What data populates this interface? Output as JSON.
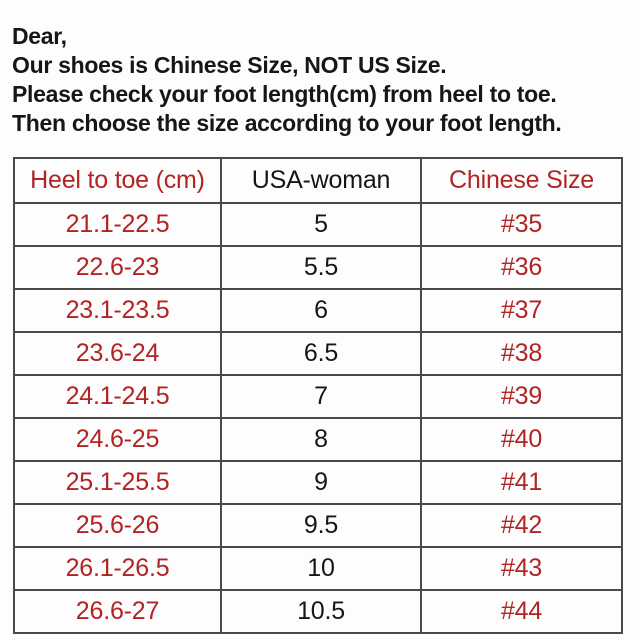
{
  "intro": {
    "line1": "Dear,",
    "line2": "Our shoes is Chinese Size, NOT US Size.",
    "line3": "Please check your foot length(cm) from heel to toe.",
    "line4": "Then choose the size according to your foot length."
  },
  "size_table": {
    "columns": [
      {
        "label": "Heel to toe (cm)"
      },
      {
        "label": "USA-woman"
      },
      {
        "label": "Chinese Size"
      }
    ],
    "rows": [
      {
        "heel_to_toe_cm": "21.1-22.5",
        "usa_woman": "5",
        "chinese_size": "#35"
      },
      {
        "heel_to_toe_cm": "22.6-23",
        "usa_woman": "5.5",
        "chinese_size": "#36"
      },
      {
        "heel_to_toe_cm": "23.1-23.5",
        "usa_woman": "6",
        "chinese_size": "#37"
      },
      {
        "heel_to_toe_cm": "23.6-24",
        "usa_woman": "6.5",
        "chinese_size": "#38"
      },
      {
        "heel_to_toe_cm": "24.1-24.5",
        "usa_woman": "7",
        "chinese_size": "#39"
      },
      {
        "heel_to_toe_cm": "24.6-25",
        "usa_woman": "8",
        "chinese_size": "#40"
      },
      {
        "heel_to_toe_cm": "25.1-25.5",
        "usa_woman": "9",
        "chinese_size": "#41"
      },
      {
        "heel_to_toe_cm": "25.6-26",
        "usa_woman": "9.5",
        "chinese_size": "#42"
      },
      {
        "heel_to_toe_cm": "26.1-26.5",
        "usa_woman": "10",
        "chinese_size": "#43"
      },
      {
        "heel_to_toe_cm": "26.6-27",
        "usa_woman": "10.5",
        "chinese_size": "#44"
      }
    ]
  },
  "colors": {
    "accent_red": "#b22424",
    "text_black": "#161616",
    "table_border": "#4a4a4a",
    "background": "#fdfdfd"
  }
}
